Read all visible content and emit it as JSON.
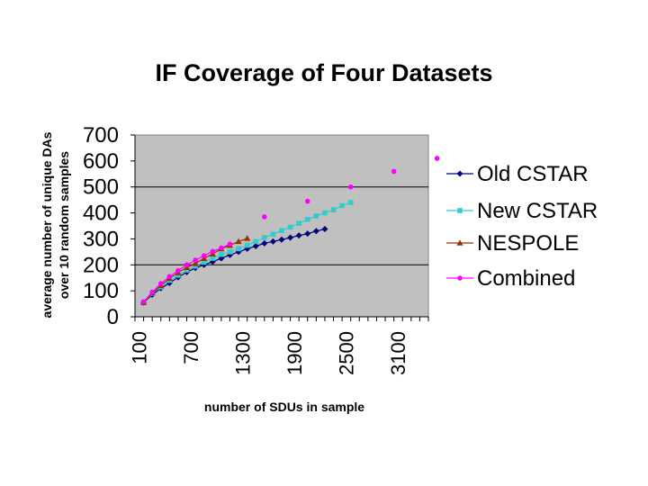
{
  "chart_data": {
    "type": "line",
    "title": "IF Coverage of Four Datasets",
    "xlabel": "number of SDUs in sample",
    "ylabel_line1": "average number of unique DAs",
    "ylabel_line2": "over 10 random samples",
    "ylim": [
      0,
      700
    ],
    "yticks": [
      "700",
      "600",
      "500",
      "400",
      "300",
      "200",
      "100",
      "0"
    ],
    "ytick_values": [
      700,
      600,
      500,
      400,
      300,
      200,
      100,
      0
    ],
    "gridlines": [
      500,
      200
    ],
    "xlim": [
      0,
      3400
    ],
    "xticks": [
      "100",
      "700",
      "1300",
      "1900",
      "2500",
      "3100"
    ],
    "xtick_values": [
      100,
      700,
      1300,
      1900,
      2500,
      3100
    ],
    "legend_position": "right",
    "colors": {
      "plot_bg": "#c0c0c0",
      "grid": "#000000",
      "old_cstar": "#000080",
      "new_cstar": "#33cccc",
      "nespole": "#993300",
      "combined": "#ff00ff"
    },
    "series": [
      {
        "name": "Old CSTAR",
        "marker": "diamond",
        "x": [
          100,
          200,
          300,
          400,
          500,
          600,
          700,
          800,
          900,
          1000,
          1100,
          1200,
          1300,
          1400,
          1500,
          1600,
          1700,
          1800,
          1900,
          2000,
          2100,
          2200
        ],
        "y": [
          55,
          85,
          110,
          130,
          152,
          172,
          188,
          200,
          212,
          225,
          238,
          250,
          262,
          272,
          283,
          290,
          297,
          305,
          313,
          320,
          330,
          338
        ]
      },
      {
        "name": "New CSTAR",
        "marker": "square",
        "x": [
          100,
          200,
          300,
          400,
          500,
          600,
          700,
          800,
          900,
          1000,
          1100,
          1200,
          1300,
          1400,
          1500,
          1600,
          1700,
          1800,
          1900,
          2000,
          2100,
          2200,
          2300,
          2400,
          2500
        ],
        "y": [
          55,
          90,
          115,
          140,
          160,
          180,
          195,
          210,
          225,
          240,
          250,
          262,
          275,
          290,
          305,
          318,
          332,
          345,
          360,
          375,
          388,
          400,
          412,
          428,
          440
        ]
      },
      {
        "name": "NESPOLE",
        "marker": "triangle",
        "x": [
          100,
          200,
          300,
          400,
          500,
          600,
          700,
          800,
          900,
          1000,
          1100,
          1200,
          1300
        ],
        "y": [
          55,
          92,
          120,
          148,
          170,
          190,
          205,
          225,
          242,
          262,
          275,
          290,
          302
        ]
      },
      {
        "name": "Combined",
        "marker": "circle",
        "x": [
          100,
          200,
          300,
          400,
          500,
          600,
          700,
          800,
          900,
          1000,
          1100,
          1500,
          2000,
          2500,
          3000,
          3500
        ],
        "y": [
          58,
          95,
          128,
          155,
          178,
          200,
          218,
          235,
          252,
          265,
          280,
          385,
          445,
          500,
          560,
          610
        ]
      }
    ]
  }
}
